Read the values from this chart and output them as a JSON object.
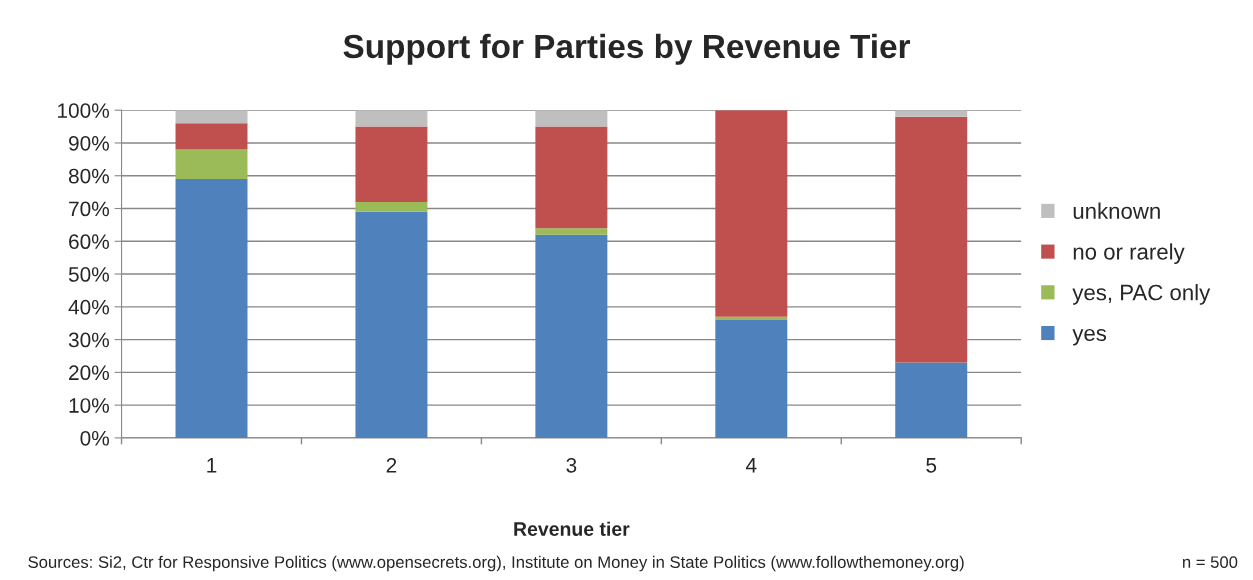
{
  "chart_data": {
    "type": "bar",
    "title": "Support for Parties by Revenue Tier",
    "xlabel": "Revenue tier",
    "categories": [
      "1",
      "2",
      "3",
      "4",
      "5"
    ],
    "stacked": true,
    "series": [
      {
        "name": "yes",
        "color": "#4f81bd",
        "values": [
          79,
          69,
          62,
          36,
          23
        ]
      },
      {
        "name": "yes, PAC only",
        "color": "#9bbb59",
        "values": [
          9,
          3,
          2,
          1,
          0
        ]
      },
      {
        "name": "no or rarely",
        "color": "#c0504d",
        "values": [
          8,
          23,
          31,
          63,
          75
        ]
      },
      {
        "name": "unknown",
        "color": "#bfbfbf",
        "values": [
          4,
          5,
          5,
          0,
          2
        ]
      }
    ],
    "ylim": [
      0,
      100
    ],
    "yticks": [
      {
        "value": 0,
        "label": "0%"
      },
      {
        "value": 10,
        "label": "10%"
      },
      {
        "value": 20,
        "label": "20%"
      },
      {
        "value": 30,
        "label": "30%"
      },
      {
        "value": 40,
        "label": "40%"
      },
      {
        "value": 50,
        "label": "50%"
      },
      {
        "value": 60,
        "label": "60%"
      },
      {
        "value": 70,
        "label": "70%"
      },
      {
        "value": 80,
        "label": "80%"
      },
      {
        "value": 90,
        "label": "90%"
      },
      {
        "value": 100,
        "label": "100%"
      }
    ],
    "grid": "y",
    "legend": "right",
    "annotations": [
      "Sources: Si2, Ctr for Responsive Politics (www.opensecrets.org), Institute on Money in State Politics (www.followthemoney.org)",
      "n = 500"
    ]
  }
}
